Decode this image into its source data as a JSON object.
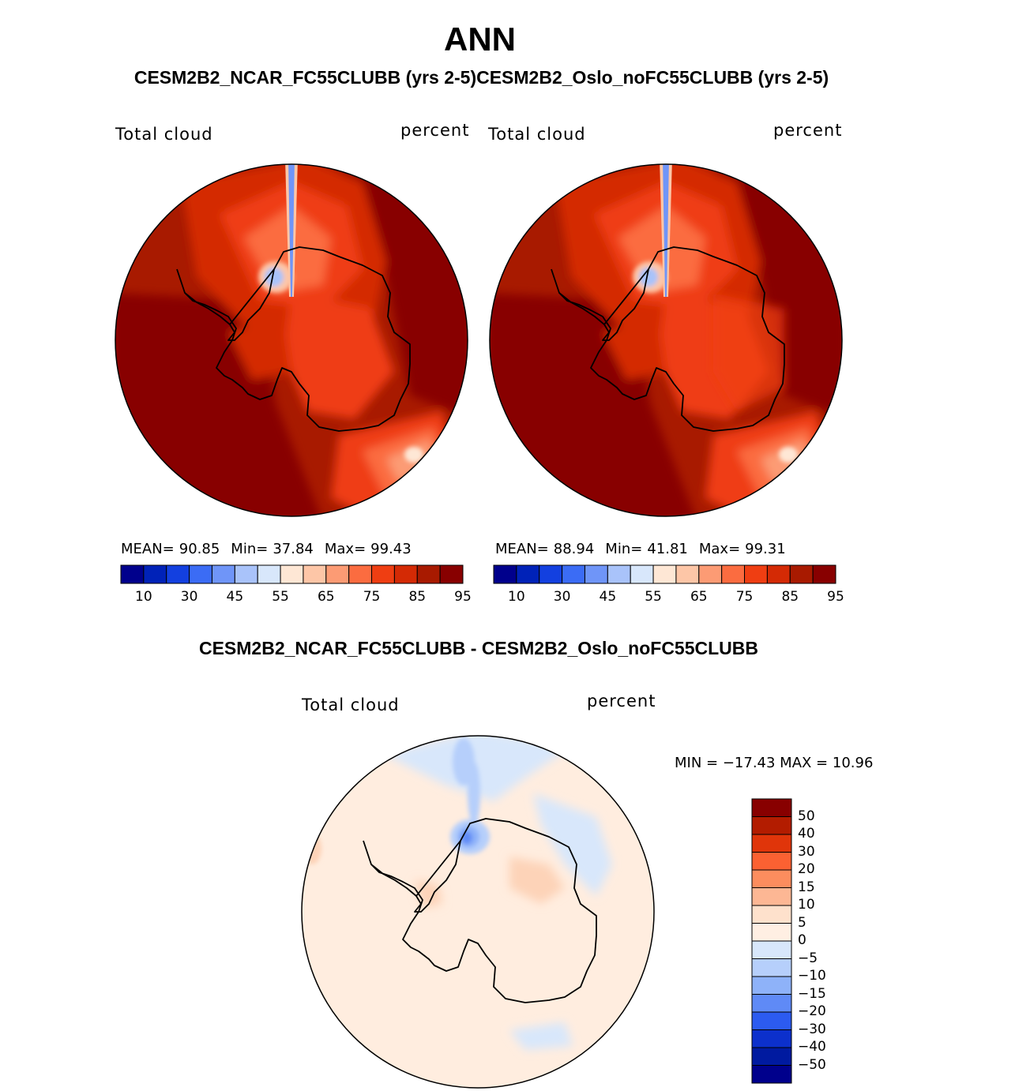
{
  "header": {
    "title": "ANN",
    "subtitle": "CESM2B2_NCAR_FC55CLUBB (yrs 2-5)CESM2B2_Oslo_noFC55CLUBB (yrs 2-5)",
    "diff_title": "CESM2B2_NCAR_FC55CLUBB - CESM2B2_Oslo_noFC55CLUBB"
  },
  "panels": [
    {
      "variable": "Total cloud",
      "units": "percent",
      "mean_label": "MEAN=",
      "mean": "90.85",
      "min_label": "Min=",
      "min": "37.84",
      "max_label": "Max=",
      "max": "99.43"
    },
    {
      "variable": "Total cloud",
      "units": "percent",
      "mean_label": "MEAN=",
      "mean": "88.94",
      "min_label": "Min=",
      "min": "41.81",
      "max_label": "Max=",
      "max": "99.31"
    }
  ],
  "diff_panel": {
    "variable": "Total cloud",
    "units": "percent",
    "minmax_text": "MIN = −17.43 MAX =   10.96"
  },
  "colorbar_abs": {
    "tick_labels": [
      "10",
      "30",
      "45",
      "55",
      "65",
      "75",
      "85",
      "95"
    ],
    "colors": [
      "#00008c",
      "#0022b8",
      "#1340e0",
      "#3b6cf5",
      "#6f95f8",
      "#a9c3fa",
      "#d8e7fb",
      "#fee7d5",
      "#fdc6a7",
      "#fc9b74",
      "#fb6c40",
      "#ef3e12",
      "#d42a05",
      "#a81a00",
      "#880000"
    ]
  },
  "colorbar_diff": {
    "tick_labels": [
      "50",
      "40",
      "30",
      "20",
      "15",
      "10",
      "5",
      "0",
      "−5",
      "−10",
      "−15",
      "−20",
      "−30",
      "−40",
      "−50"
    ],
    "colors": [
      "#880000",
      "#b31c00",
      "#e0350a",
      "#fb6132",
      "#fc8d5e",
      "#fdb794",
      "#fee1cc",
      "#ffefe3",
      "#d8e7fb",
      "#b6cffb",
      "#8eb2f9",
      "#5f8af6",
      "#2c5bf0",
      "#0c30cc",
      "#001aa0",
      "#00008c"
    ]
  },
  "colors": {
    "land_outline": "#000000",
    "ocean_dark_red": "#880000"
  }
}
